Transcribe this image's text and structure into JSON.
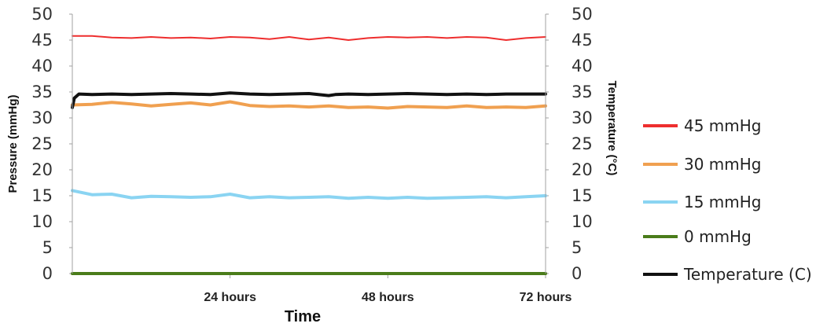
{
  "chart_data": {
    "type": "line",
    "xlabel": "Time",
    "ylabel": "Pressure (mmHg)",
    "ylabel_right": "Temperature (°C)",
    "ylim": [
      0,
      50
    ],
    "yticks": [
      0,
      5,
      10,
      15,
      20,
      25,
      30,
      35,
      40,
      45,
      50
    ],
    "xlim": [
      0,
      72
    ],
    "xticks": [
      {
        "value": 24,
        "label": "24 hours"
      },
      {
        "value": 48,
        "label": "48 hours"
      },
      {
        "value": 72,
        "label": "72 hours"
      }
    ],
    "grid": false,
    "legend_position": "right",
    "series": [
      {
        "name": "45 mmHg",
        "color": "#ee2e2e",
        "axis": "left",
        "x": [
          0,
          3,
          6,
          9,
          12,
          15,
          18,
          21,
          24,
          27,
          30,
          33,
          36,
          39,
          42,
          45,
          48,
          51,
          54,
          57,
          60,
          63,
          66,
          69,
          72
        ],
        "values": [
          45.8,
          45.8,
          45.5,
          45.4,
          45.6,
          45.4,
          45.5,
          45.3,
          45.6,
          45.5,
          45.2,
          45.6,
          45.1,
          45.5,
          45.0,
          45.4,
          45.6,
          45.5,
          45.6,
          45.4,
          45.6,
          45.5,
          45.0,
          45.4,
          45.6
        ]
      },
      {
        "name": "30 mmHg",
        "color": "#f0a050",
        "axis": "left",
        "x": [
          0,
          3,
          6,
          9,
          12,
          15,
          18,
          21,
          24,
          27,
          30,
          33,
          36,
          39,
          42,
          45,
          48,
          51,
          54,
          57,
          60,
          63,
          66,
          69,
          72
        ],
        "values": [
          32.5,
          32.6,
          33.0,
          32.7,
          32.3,
          32.6,
          32.9,
          32.5,
          33.1,
          32.4,
          32.2,
          32.3,
          32.1,
          32.3,
          32.0,
          32.1,
          31.9,
          32.2,
          32.1,
          32.0,
          32.3,
          32.0,
          32.1,
          32.0,
          32.3
        ]
      },
      {
        "name": "15 mmHg",
        "color": "#8ad4f2",
        "axis": "left",
        "x": [
          0,
          3,
          6,
          9,
          12,
          15,
          18,
          21,
          24,
          27,
          30,
          33,
          36,
          39,
          42,
          45,
          48,
          51,
          54,
          57,
          60,
          63,
          66,
          69,
          72
        ],
        "values": [
          16.0,
          15.2,
          15.3,
          14.6,
          14.9,
          14.8,
          14.7,
          14.8,
          15.3,
          14.6,
          14.8,
          14.6,
          14.7,
          14.8,
          14.5,
          14.7,
          14.5,
          14.7,
          14.5,
          14.6,
          14.7,
          14.8,
          14.6,
          14.8,
          15.0
        ]
      },
      {
        "name": "0 mmHg",
        "color": "#4a7c1a",
        "axis": "left",
        "x": [
          0,
          72
        ],
        "values": [
          0,
          0
        ]
      },
      {
        "name": "Temperature (C)",
        "color": "#111111",
        "axis": "right",
        "x": [
          0,
          0.3,
          1,
          3,
          6,
          9,
          12,
          15,
          18,
          21,
          24,
          27,
          30,
          33,
          36,
          39,
          40,
          42,
          45,
          48,
          51,
          54,
          57,
          60,
          63,
          66,
          69,
          72
        ],
        "values": [
          32.0,
          33.8,
          34.6,
          34.5,
          34.6,
          34.5,
          34.6,
          34.7,
          34.6,
          34.5,
          34.8,
          34.6,
          34.5,
          34.6,
          34.7,
          34.3,
          34.5,
          34.6,
          34.5,
          34.6,
          34.7,
          34.6,
          34.5,
          34.6,
          34.5,
          34.6,
          34.6,
          34.6
        ]
      }
    ]
  }
}
